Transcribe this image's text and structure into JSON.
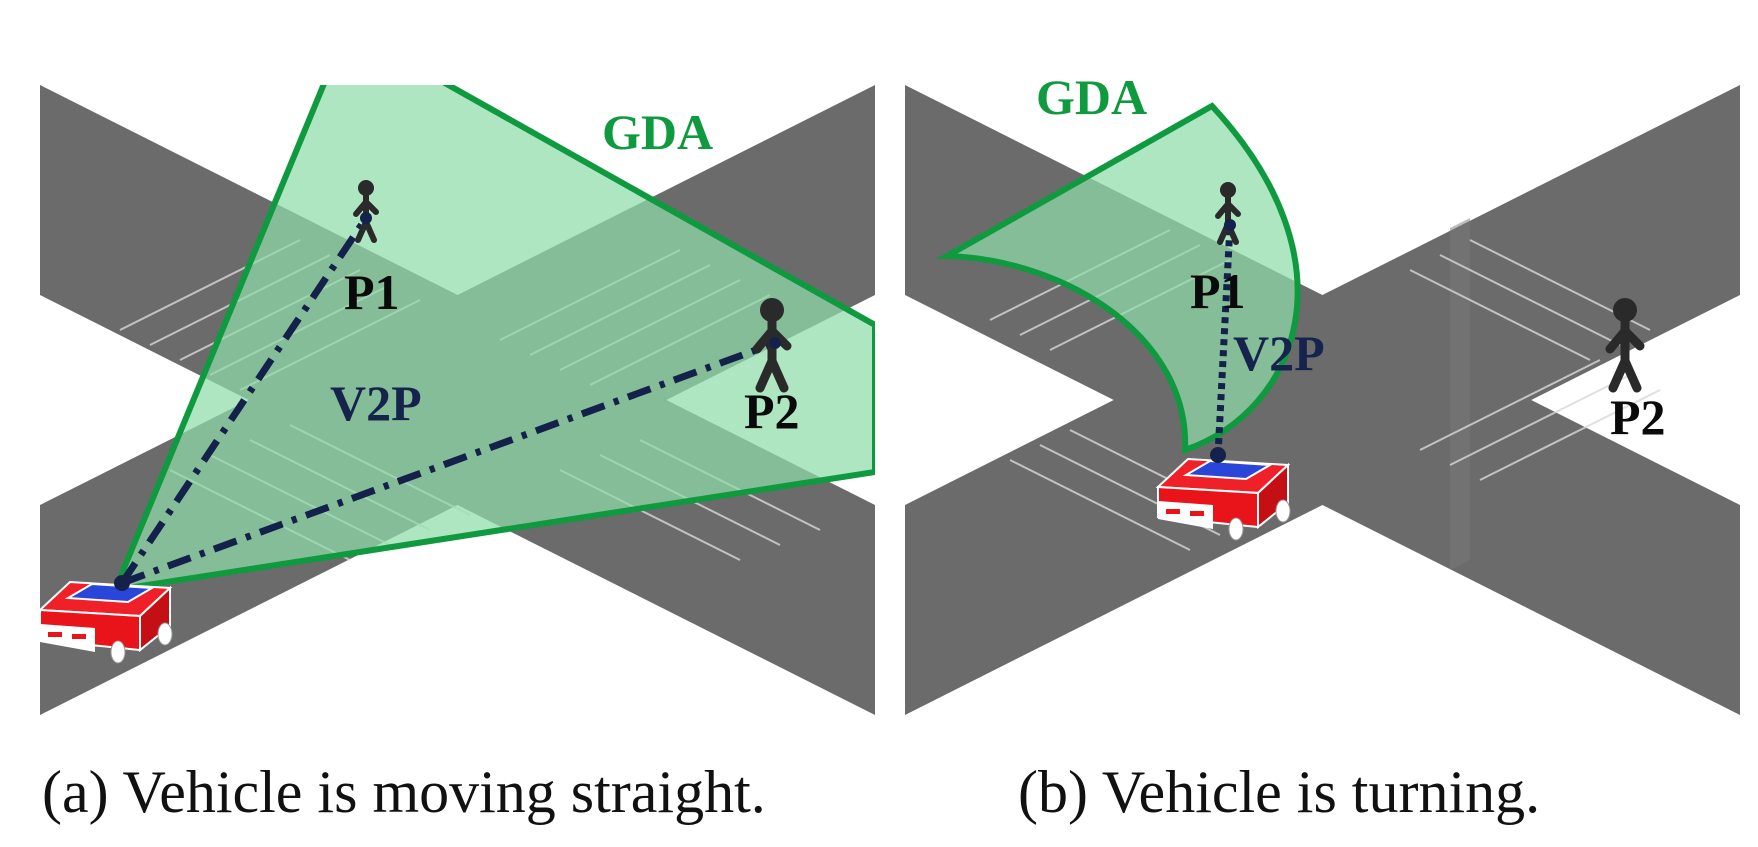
{
  "panels": [
    {
      "id": "a",
      "caption": "(a) Vehicle is moving straight.",
      "zone_label": "GDA",
      "link_label": "V2P",
      "pedestrians": [
        "P1",
        "P2"
      ]
    },
    {
      "id": "b",
      "caption": "(b) Vehicle is turning.",
      "zone_label": "GDA",
      "link_label": "V2P",
      "pedestrians": [
        "P1",
        "P2"
      ]
    }
  ],
  "colors": {
    "road": "#6b6b6b",
    "zone_fill": "#8fdcaa",
    "zone_stroke": "#0f9a40",
    "link": "#14214a",
    "car_body": "#e8141a",
    "car_roof": "#1f3fd8",
    "pedestrian": "#2a2a2a"
  }
}
